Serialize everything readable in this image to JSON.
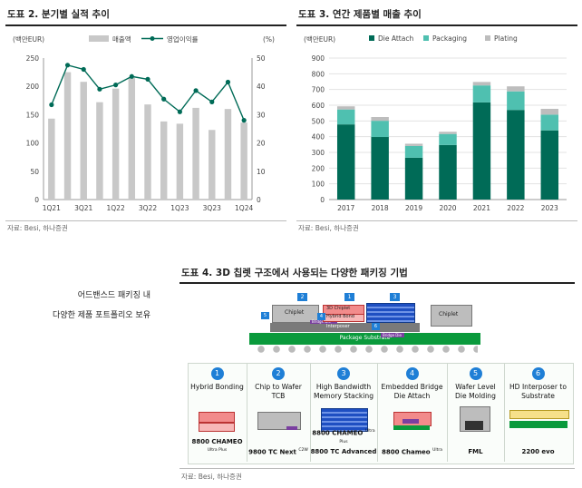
{
  "left_chart": {
    "title": "도표 2. 분기별 실적 추이",
    "left_unit": "(백만EUR)",
    "right_unit": "(%)",
    "legend_bar": "매출액",
    "legend_line": "영업이익률",
    "source": "자료: Besi, 하나증권",
    "bar_color": "#c8c8c8",
    "line_color": "#006b57"
  },
  "right_chart": {
    "title": "도표 3. 연간 제품별 매출 추이",
    "unit": "(백만EUR)",
    "source": "자료: Besi, 하나증권",
    "colors": {
      "die_attach": "#006b57",
      "packaging": "#4fc0b0",
      "plating": "#bdbdbd"
    }
  },
  "bottom": {
    "title": "도표 4. 3D 칩렛 구조에서 사용되는 다양한 패키징 기법",
    "caption_line1": "어드밴스드 패키징 내",
    "caption_line2": "다양한 제품 포트폴리오 보유",
    "source": "자료: Besi, 하나증권",
    "diagram_labels": {
      "chiplet_left": "Chiplet",
      "chip_3d": "3D Chiplet",
      "hybrid_bond": "Hybrid Bond",
      "bridge_die": "Bridge Die",
      "interposer": "Interposer",
      "chiplet_right": "Chiplet",
      "package_substrate": "Package Substrate",
      "bridge_die_2": "Bridge Die",
      "badges": [
        "2",
        "1",
        "3",
        "4",
        "5",
        "6"
      ]
    },
    "techniques": [
      {
        "num": "1",
        "name": "Hybrid Bonding",
        "product": "8800 CHAMEO",
        "sup": "Ultra Plus",
        "img_a": "3D Chiplet",
        "img_b": "Hybrid Bond"
      },
      {
        "num": "2",
        "name": "Chip to Wafer TCB",
        "product": "9800 TC Next",
        "sup": "C2W",
        "img_a": "Chiplet",
        "img_b": ""
      },
      {
        "num": "3",
        "name": "High Bandwidth\nMemory Stacking",
        "product": "8800 CHAMEO",
        "sup": "Ultra Plus",
        "product2": "8800 TC Advanced",
        "img_a": "",
        "img_b": ""
      },
      {
        "num": "4",
        "name": "Embedded Bridge\nDie Attach",
        "product": "8800 Chameo",
        "sup": "Ultra",
        "img_a": "",
        "img_b": ""
      },
      {
        "num": "5",
        "name": "Wafer Level\nDie Molding",
        "product": "FML",
        "sup": "",
        "img_a": "",
        "img_b": ""
      },
      {
        "num": "6",
        "name": "HD Interposer to\nSubstrate",
        "product": "2200 evo",
        "sup": "",
        "img_a": "Interposer",
        "img_b": "Package Substrate"
      }
    ]
  },
  "chart_data": [
    {
      "type": "bar",
      "title": "도표 2. 분기별 실적 추이",
      "ylabel": "(백만EUR)",
      "y2label": "(%)",
      "ylim": [
        0,
        250
      ],
      "y2lim": [
        0,
        50
      ],
      "yticks": [
        0,
        50,
        100,
        150,
        200,
        250
      ],
      "y2ticks": [
        0,
        10,
        20,
        30,
        40,
        50
      ],
      "x_tick_labels": [
        "1Q21",
        "3Q21",
        "1Q22",
        "3Q22",
        "1Q23",
        "3Q23",
        "1Q24"
      ],
      "categories": [
        "1Q21",
        "2Q21",
        "3Q21",
        "4Q21",
        "1Q22",
        "2Q22",
        "3Q22",
        "4Q22",
        "1Q23",
        "2Q23",
        "3Q23",
        "4Q23",
        "1Q24"
      ],
      "series": [
        {
          "name": "매출액",
          "type": "bar",
          "axis": "left",
          "values": [
            143,
            225,
            208,
            172,
            196,
            215,
            168,
            138,
            134,
            162,
            123,
            160,
            136
          ]
        },
        {
          "name": "영업이익률",
          "type": "line",
          "axis": "right",
          "values": [
            33.5,
            47.5,
            46.0,
            39.0,
            40.5,
            43.5,
            42.5,
            35.5,
            31.0,
            38.5,
            34.5,
            41.5,
            28.0
          ]
        }
      ],
      "legend": "top-right",
      "grid": false
    },
    {
      "type": "bar",
      "stacked": true,
      "title": "도표 3. 연간 제품별 매출 추이",
      "ylabel": "(백만EUR)",
      "ylim": [
        0,
        900
      ],
      "yticks": [
        0,
        100,
        200,
        300,
        400,
        500,
        600,
        700,
        800,
        900
      ],
      "categories": [
        "2017",
        "2018",
        "2019",
        "2020",
        "2021",
        "2022",
        "2023"
      ],
      "series": [
        {
          "name": "Die Attach",
          "values": [
            478,
            398,
            266,
            347,
            618,
            570,
            440
          ]
        },
        {
          "name": "Packaging",
          "values": [
            95,
            103,
            75,
            70,
            108,
            118,
            100
          ]
        },
        {
          "name": "Plating",
          "values": [
            20,
            24,
            14,
            14,
            22,
            32,
            37
          ]
        }
      ],
      "legend": "top",
      "grid": true
    }
  ]
}
